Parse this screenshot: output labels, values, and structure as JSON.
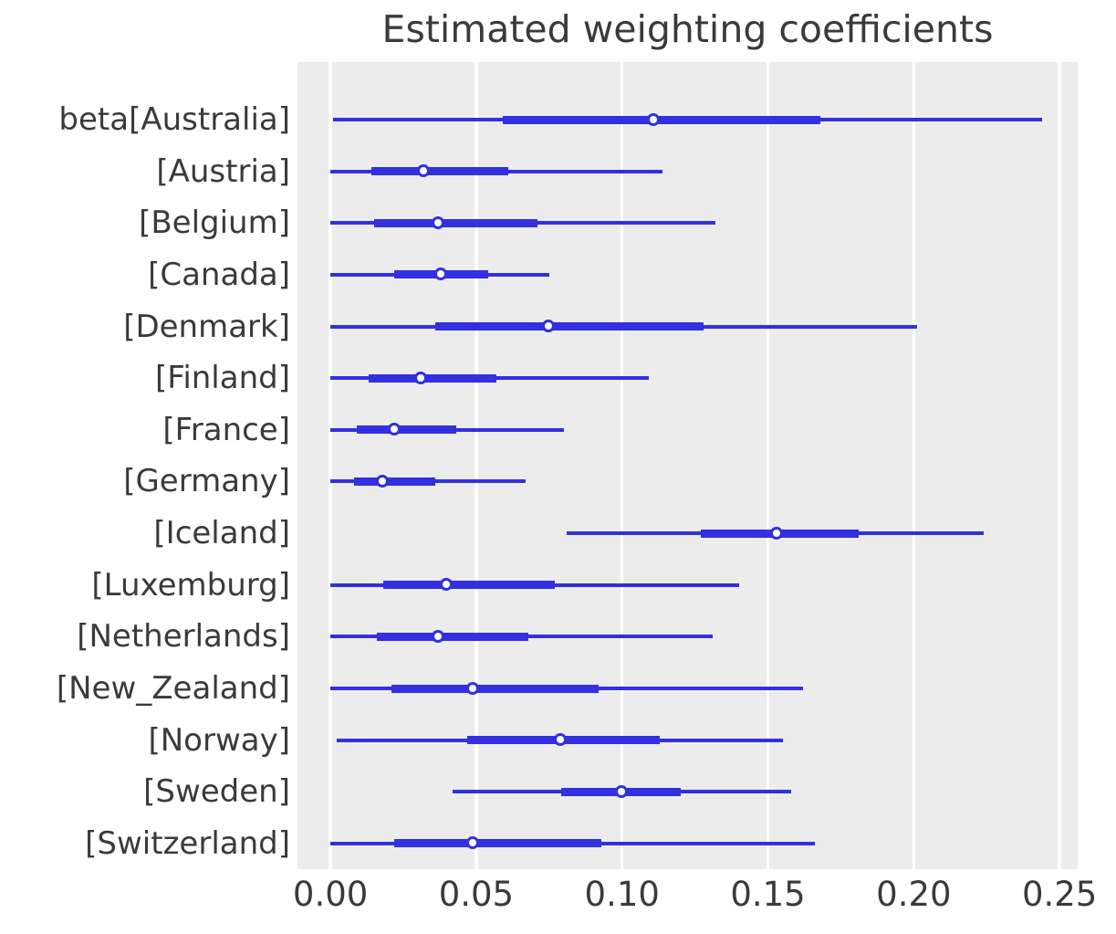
{
  "chart_data": {
    "type": "forest",
    "title": "Estimated weighting coefficients",
    "xlabel": "",
    "ylabel": "",
    "xlim": [
      -0.0113,
      0.2562
    ],
    "x_ticks": [
      0,
      0.05,
      0.1,
      0.15,
      0.2,
      0.25
    ],
    "x_tick_labels": [
      "0.00",
      "0.05",
      "0.10",
      "0.15",
      "0.20",
      "0.25"
    ],
    "grid": "vertical-white-gridlines",
    "legend": "none",
    "rows": [
      {
        "label": "beta[Australia]",
        "interval_outer": [
          0.001,
          0.244
        ],
        "interval_inner": [
          0.059,
          0.168
        ],
        "point": 0.111
      },
      {
        "label": "[Austria]",
        "interval_outer": [
          0.0,
          0.114
        ],
        "interval_inner": [
          0.014,
          0.061
        ],
        "point": 0.032
      },
      {
        "label": "[Belgium]",
        "interval_outer": [
          0.0,
          0.132
        ],
        "interval_inner": [
          0.015,
          0.071
        ],
        "point": 0.037
      },
      {
        "label": "[Canada]",
        "interval_outer": [
          0.0,
          0.075
        ],
        "interval_inner": [
          0.022,
          0.054
        ],
        "point": 0.038
      },
      {
        "label": "[Denmark]",
        "interval_outer": [
          0.0,
          0.201
        ],
        "interval_inner": [
          0.036,
          0.128
        ],
        "point": 0.075
      },
      {
        "label": "[Finland]",
        "interval_outer": [
          0.0,
          0.109
        ],
        "interval_inner": [
          0.013,
          0.057
        ],
        "point": 0.031
      },
      {
        "label": "[France]",
        "interval_outer": [
          0.0,
          0.08
        ],
        "interval_inner": [
          0.009,
          0.043
        ],
        "point": 0.022
      },
      {
        "label": "[Germany]",
        "interval_outer": [
          0.0,
          0.067
        ],
        "interval_inner": [
          0.008,
          0.036
        ],
        "point": 0.018
      },
      {
        "label": "[Iceland]",
        "interval_outer": [
          0.081,
          0.224
        ],
        "interval_inner": [
          0.127,
          0.181
        ],
        "point": 0.153
      },
      {
        "label": "[Luxemburg]",
        "interval_outer": [
          0.0,
          0.14
        ],
        "interval_inner": [
          0.018,
          0.077
        ],
        "point": 0.04
      },
      {
        "label": "[Netherlands]",
        "interval_outer": [
          0.0,
          0.131
        ],
        "interval_inner": [
          0.016,
          0.068
        ],
        "point": 0.037
      },
      {
        "label": "[New_Zealand]",
        "interval_outer": [
          0.0,
          0.162
        ],
        "interval_inner": [
          0.021,
          0.092
        ],
        "point": 0.049
      },
      {
        "label": "[Norway]",
        "interval_outer": [
          0.002,
          0.155
        ],
        "interval_inner": [
          0.047,
          0.113
        ],
        "point": 0.079
      },
      {
        "label": "[Sweden]",
        "interval_outer": [
          0.042,
          0.158
        ],
        "interval_inner": [
          0.079,
          0.12
        ],
        "point": 0.1
      },
      {
        "label": "[Switzerland]",
        "interval_outer": [
          0.0,
          0.166
        ],
        "interval_inner": [
          0.022,
          0.093
        ],
        "point": 0.049
      }
    ],
    "colors": {
      "line": "#3230e0",
      "marker_fill": "#ffffff",
      "plot_background": "#ececec",
      "grid": "#ffffff",
      "text": "#3a3a3a",
      "figure_background": "#ffffff"
    }
  }
}
